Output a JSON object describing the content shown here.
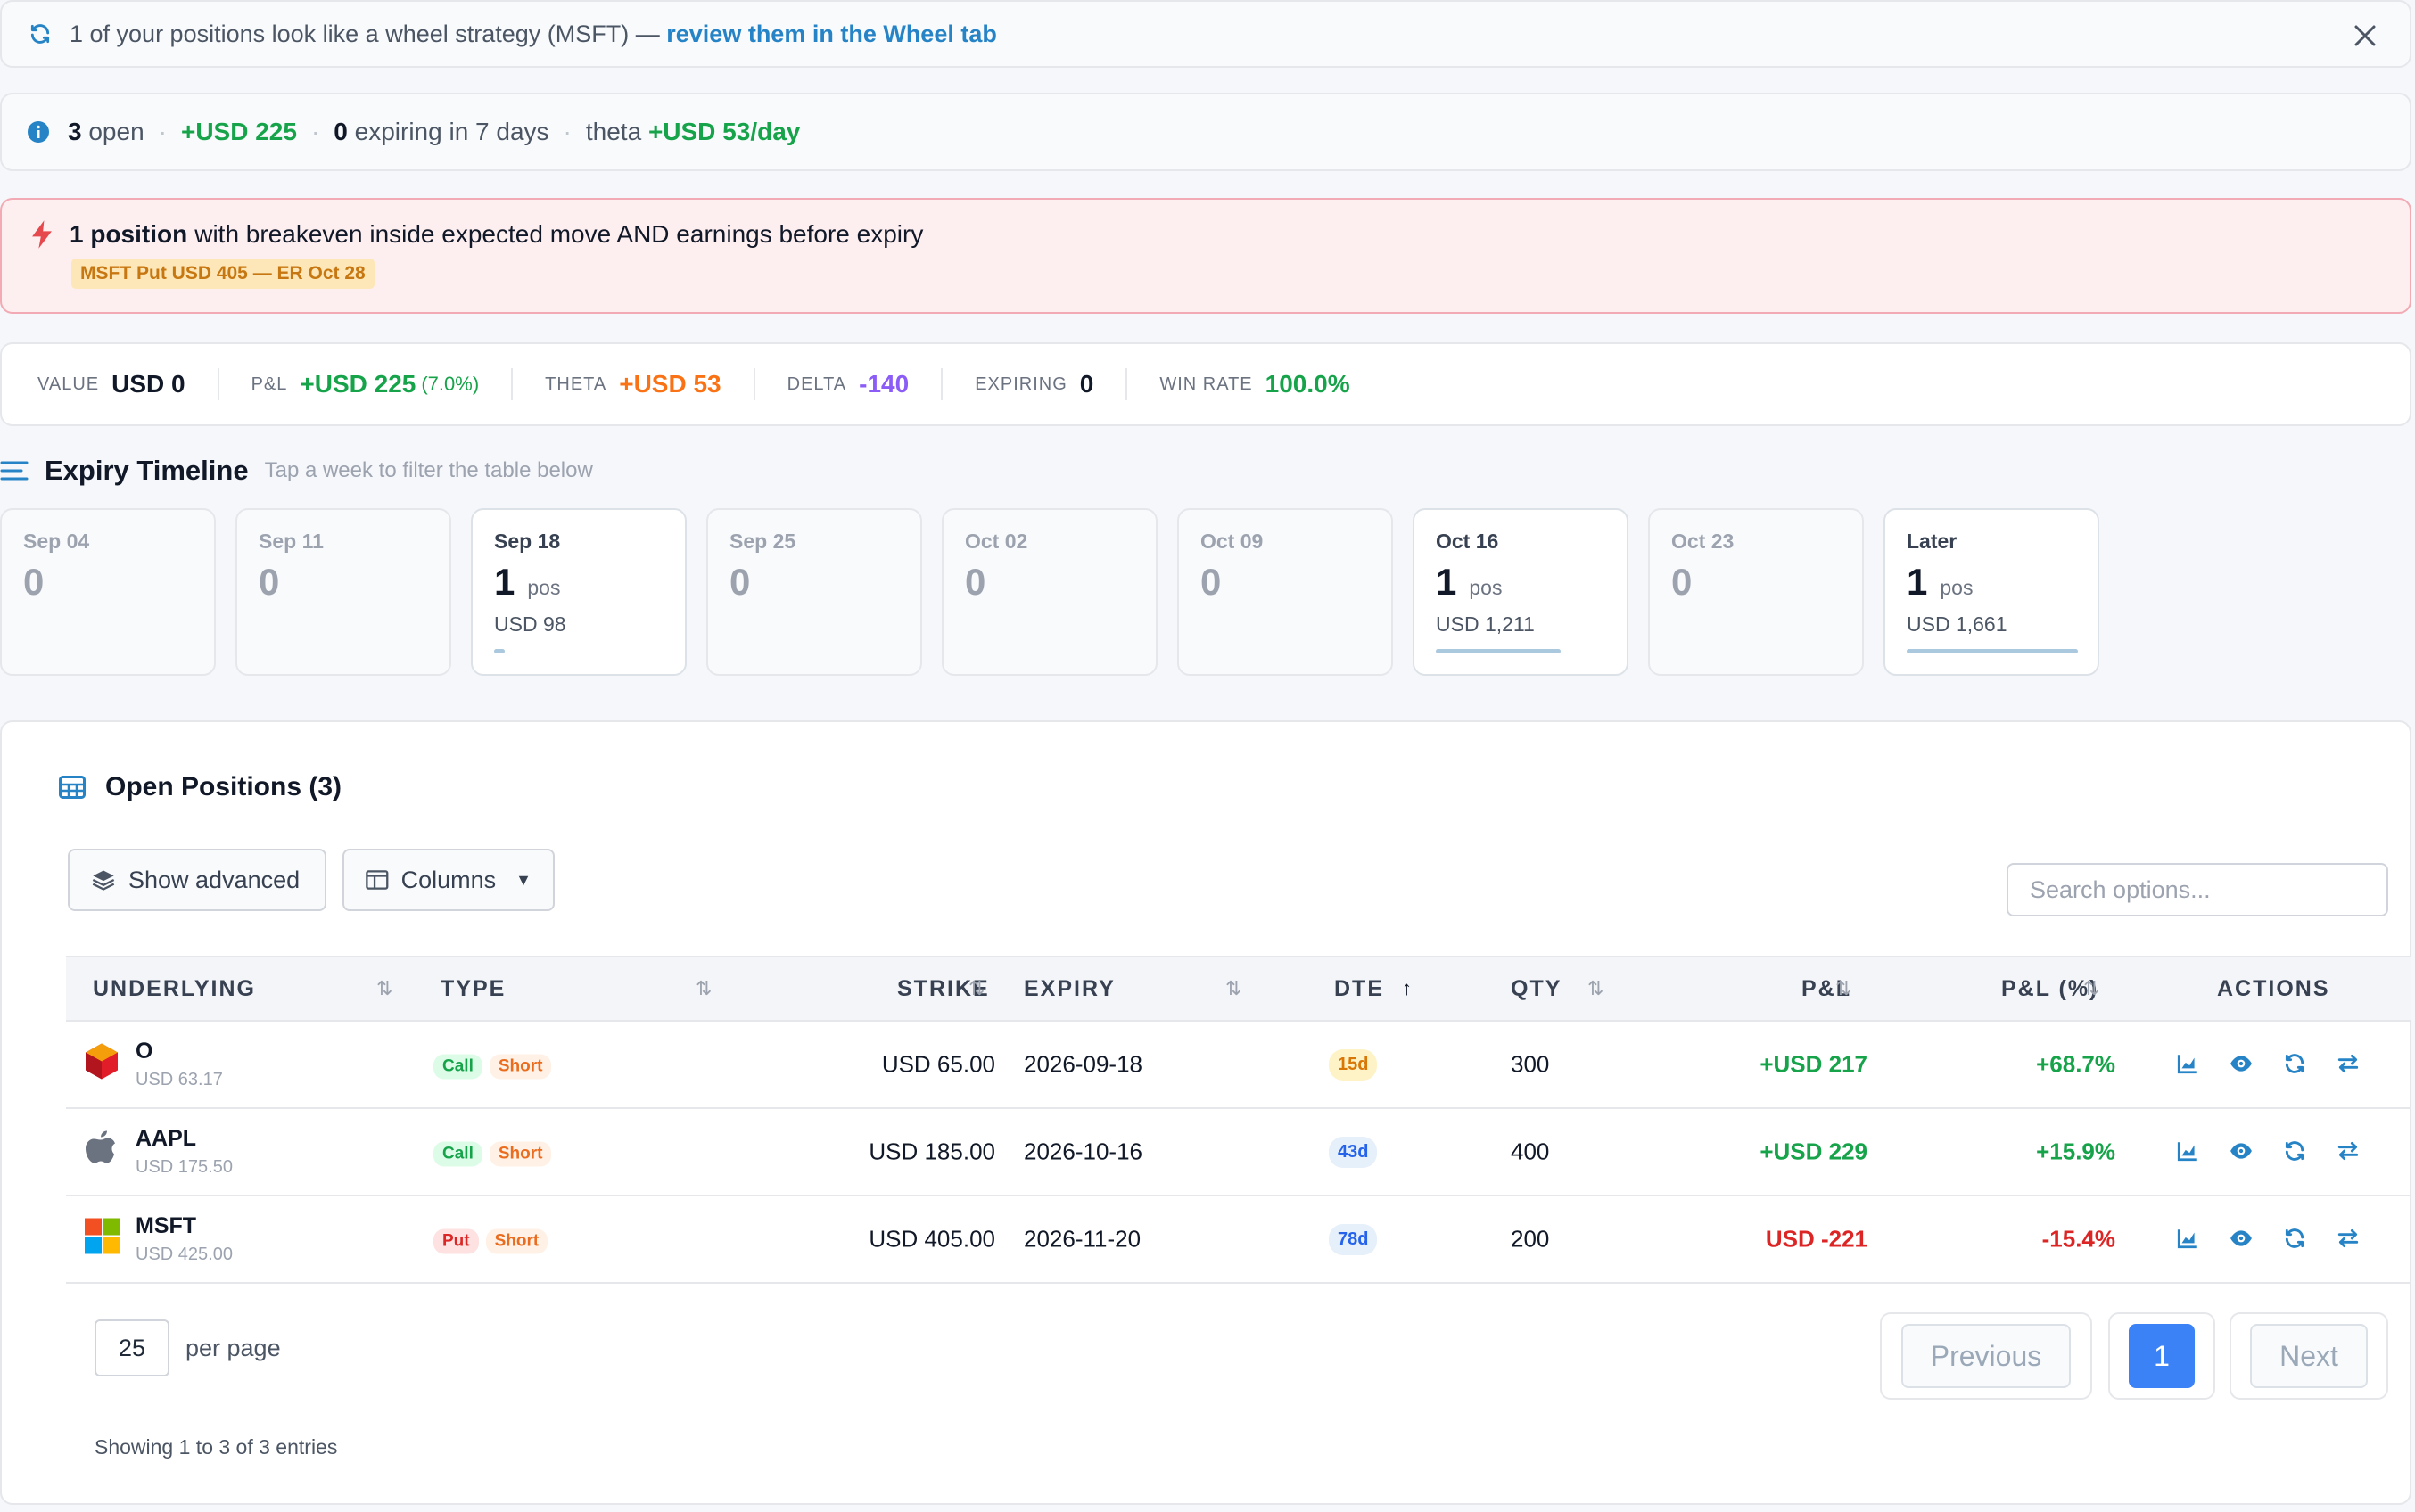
{
  "wheel_banner": {
    "text": "1 of your positions look like a wheel strategy (MSFT) — ",
    "link": "review them in the Wheel tab",
    "icon": "refresh-icon",
    "close_icon": "close-icon"
  },
  "summary": {
    "open_count": "3",
    "open_label": "open",
    "pnl": "+USD 225",
    "expiring_count": "0",
    "expiring_label": "expiring in 7 days",
    "theta_label": "theta",
    "theta_value": "+USD 53/day"
  },
  "alert": {
    "bold": "1 position",
    "text": "with breakeven inside expected move AND earnings before expiry",
    "tag": "MSFT Put USD 405 — ER Oct 28",
    "icon": "bolt-icon"
  },
  "metrics": [
    {
      "label": "VALUE",
      "value": "USD 0",
      "color": "#111827"
    },
    {
      "label": "P&L",
      "value": "+USD 225",
      "sub": "(7.0%)",
      "color": "#16a34a"
    },
    {
      "label": "THETA",
      "value": "+USD 53",
      "color": "#f97316"
    },
    {
      "label": "DELTA",
      "value": "-140",
      "color": "#8b5cf6"
    },
    {
      "label": "EXPIRING",
      "value": "0",
      "color": "#111827"
    },
    {
      "label": "WIN RATE",
      "value": "100.0%",
      "color": "#16a34a"
    }
  ],
  "timeline": {
    "title": "Expiry Timeline",
    "hint": "Tap a week to filter the table below",
    "weeks": [
      {
        "label": "Sep 04",
        "count": "0"
      },
      {
        "label": "Sep 11",
        "count": "0"
      },
      {
        "label": "Sep 18",
        "count": "1",
        "pos": "pos",
        "amount": "USD 98",
        "fill": 0.06
      },
      {
        "label": "Sep 25",
        "count": "0"
      },
      {
        "label": "Oct 02",
        "count": "0"
      },
      {
        "label": "Oct 09",
        "count": "0"
      },
      {
        "label": "Oct 16",
        "count": "1",
        "pos": "pos",
        "amount": "USD 1,211",
        "fill": 0.73
      },
      {
        "label": "Oct 23",
        "count": "0"
      },
      {
        "label": "Later",
        "count": "1",
        "pos": "pos",
        "amount": "USD 1,661",
        "fill": 1.0
      }
    ]
  },
  "panel": {
    "title": "Open Positions (3)",
    "show_advanced": "Show advanced",
    "columns": "Columns",
    "search_placeholder": "Search options..."
  },
  "table": {
    "headers": {
      "underlying": "UNDERLYING",
      "type": "TYPE",
      "strike": "STRIKE",
      "expiry": "EXPIRY",
      "dte": "DTE",
      "qty": "QTY",
      "pnl": "P&L",
      "pnl_pct": "P&L (%)",
      "actions": "ACTIONS"
    },
    "rows": [
      {
        "symbol": "O",
        "price": "USD 63.17",
        "type": "Call",
        "side": "Short",
        "strike": "USD 65.00",
        "expiry": "2026-09-18",
        "dte": "15d",
        "qty": "300",
        "pnl": "+USD 217",
        "pnl_pct": "+68.7%",
        "logo": "realty-income-logo"
      },
      {
        "symbol": "AAPL",
        "price": "USD 175.50",
        "type": "Call",
        "side": "Short",
        "strike": "USD 185.00",
        "expiry": "2026-10-16",
        "dte": "43d",
        "qty": "400",
        "pnl": "+USD 229",
        "pnl_pct": "+15.9%",
        "logo": "apple-logo"
      },
      {
        "symbol": "MSFT",
        "price": "USD 425.00",
        "type": "Put",
        "side": "Short",
        "strike": "USD 405.00",
        "expiry": "2026-11-20",
        "dte": "78d",
        "qty": "200",
        "pnl": "USD -221",
        "pnl_pct": "-15.4%",
        "logo": "microsoft-logo"
      }
    ]
  },
  "pagination": {
    "per_page_value": "25",
    "per_page_label": "per page",
    "previous": "Previous",
    "page": "1",
    "next": "Next",
    "showing": "Showing 1 to 3 of 3 entries"
  }
}
